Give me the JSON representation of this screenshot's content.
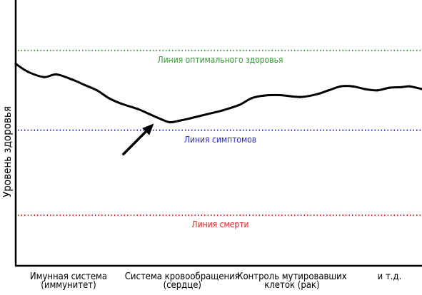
{
  "chart_data": {
    "type": "line",
    "title": "",
    "xlabel": "",
    "ylabel": "Уровень здоровья",
    "ylim": [
      0,
      100
    ],
    "xlim": [
      0,
      100
    ],
    "grid": false,
    "colors": {
      "curve": "#000000",
      "optimal": "#2e9e2e",
      "symptoms": "#2a2ad6",
      "death": "#e02020",
      "arrow": "#000000"
    },
    "reference_lines": [
      {
        "key": "optimal",
        "label": "Линия оптимального здоровья",
        "y": 81
      },
      {
        "key": "symptoms",
        "label": "Линия симптомов",
        "y": 51
      },
      {
        "key": "death",
        "label": "Линия смерти",
        "y": 19
      }
    ],
    "categories": [
      {
        "label_lines": [
          "Имунная система",
          "(иммунитет)"
        ],
        "x": 13
      },
      {
        "label_lines": [
          "Система кровообращения",
          "(сердце)"
        ],
        "x": 41
      },
      {
        "label_lines": [
          "Контроль мутировавших",
          "клеток (рак)"
        ],
        "x": 68
      },
      {
        "label_lines": [
          "и т.д."
        ],
        "x": 92
      }
    ],
    "series": [
      {
        "x": [
          0,
          3,
          7,
          10,
          14,
          17,
          20,
          23,
          26,
          30,
          33,
          36,
          38,
          40,
          43,
          47,
          51,
          55,
          58,
          61,
          65,
          70,
          74,
          77,
          80,
          83,
          86,
          89,
          92,
          95,
          97,
          100
        ],
        "y": [
          76,
          73,
          71,
          72,
          70,
          68,
          66,
          63,
          61,
          59,
          57,
          55,
          54,
          54.5,
          55.5,
          57,
          58.5,
          60.5,
          63,
          64,
          64.2,
          63.5,
          64.5,
          66,
          67.5,
          67.5,
          66.5,
          66,
          67,
          67.2,
          67.5,
          66.5
        ]
      }
    ],
    "annotation": {
      "type": "arrow",
      "from": {
        "x": 26.5,
        "y": 42
      },
      "to": {
        "x": 34,
        "y": 53.5
      }
    }
  }
}
